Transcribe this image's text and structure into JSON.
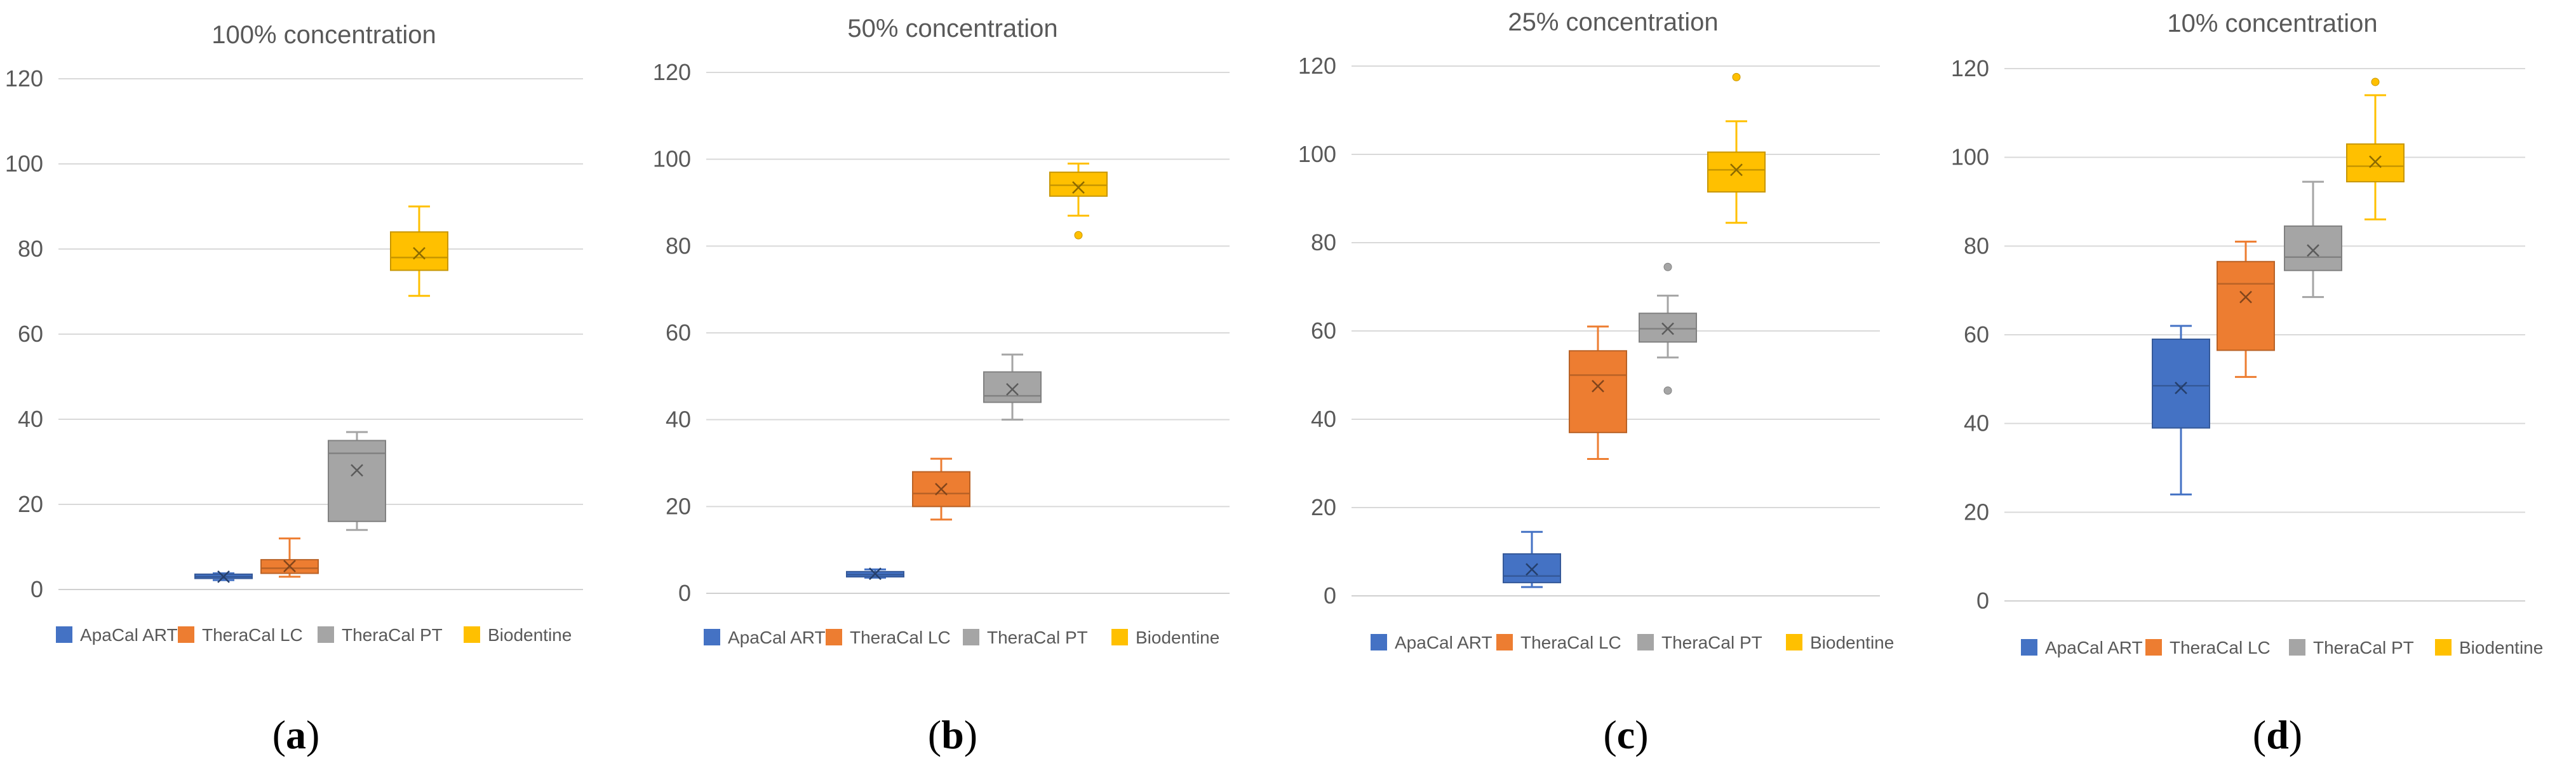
{
  "chart_data": [
    {
      "type": "box",
      "caption": "a",
      "title": "100% concentration",
      "ylim": [
        0,
        120
      ],
      "yticks": [
        0,
        20,
        40,
        60,
        80,
        100,
        120
      ],
      "series": [
        {
          "name": "ApaCal ART",
          "color": "#4472C4",
          "min": 2.2,
          "q1": 2.6,
          "median": 3.0,
          "q3": 3.6,
          "max": 3.8,
          "mean": 3.0,
          "outliers": []
        },
        {
          "name": "TheraCal LC",
          "color": "#ED7D31",
          "min": 3.0,
          "q1": 3.8,
          "median": 5.0,
          "q3": 7.0,
          "max": 12.0,
          "mean": 5.5,
          "outliers": []
        },
        {
          "name": "TheraCal PT",
          "color": "#A5A5A5",
          "min": 14.0,
          "q1": 16.0,
          "median": 32.0,
          "q3": 35.0,
          "max": 37.0,
          "mean": 28.0,
          "outliers": []
        },
        {
          "name": "Biodentine",
          "color": "#FFC000",
          "min": 69.0,
          "q1": 75.0,
          "median": 78.0,
          "q3": 84.0,
          "max": 90.0,
          "mean": 79.0,
          "outliers": []
        }
      ]
    },
    {
      "type": "box",
      "caption": "b",
      "title": "50% concentration",
      "ylim": [
        0,
        120
      ],
      "yticks": [
        0,
        20,
        40,
        60,
        80,
        100,
        120
      ],
      "series": [
        {
          "name": "ApaCal ART",
          "color": "#4472C4",
          "min": 3.6,
          "q1": 3.8,
          "median": 4.3,
          "q3": 5.0,
          "max": 5.5,
          "mean": 4.5,
          "outliers": []
        },
        {
          "name": "TheraCal LC",
          "color": "#ED7D31",
          "min": 17.0,
          "q1": 20.0,
          "median": 23.0,
          "q3": 28.0,
          "max": 31.0,
          "mean": 24.0,
          "outliers": []
        },
        {
          "name": "TheraCal PT",
          "color": "#A5A5A5",
          "min": 40.0,
          "q1": 44.0,
          "median": 45.5,
          "q3": 51.0,
          "max": 55.0,
          "mean": 47.0,
          "outliers": []
        },
        {
          "name": "Biodentine",
          "color": "#FFC000",
          "min": 87.0,
          "q1": 91.5,
          "median": 94.0,
          "q3": 97.0,
          "max": 99.0,
          "mean": 93.5,
          "outliers": [
            82.5
          ]
        }
      ]
    },
    {
      "type": "box",
      "caption": "c",
      "title": "25% concentration",
      "ylim": [
        0,
        120
      ],
      "yticks": [
        0,
        20,
        40,
        60,
        80,
        100,
        120
      ],
      "series": [
        {
          "name": "ApaCal ART",
          "color": "#4472C4",
          "min": 2.0,
          "q1": 3.0,
          "median": 4.5,
          "q3": 9.5,
          "max": 14.5,
          "mean": 6.0,
          "outliers": []
        },
        {
          "name": "TheraCal LC",
          "color": "#ED7D31",
          "min": 31.0,
          "q1": 37.0,
          "median": 50.0,
          "q3": 55.5,
          "max": 61.0,
          "mean": 47.5,
          "outliers": []
        },
        {
          "name": "TheraCal PT",
          "color": "#A5A5A5",
          "min": 54.0,
          "q1": 57.5,
          "median": 60.5,
          "q3": 64.0,
          "max": 68.0,
          "mean": 60.5,
          "outliers": [
            74.5,
            46.5
          ]
        },
        {
          "name": "Biodentine",
          "color": "#FFC000",
          "min": 84.5,
          "q1": 91.5,
          "median": 96.5,
          "q3": 100.5,
          "max": 107.5,
          "mean": 96.5,
          "outliers": [
            117.5
          ]
        }
      ]
    },
    {
      "type": "box",
      "caption": "d",
      "title": "10% concentration",
      "ylim": [
        0,
        120
      ],
      "yticks": [
        0,
        20,
        40,
        60,
        80,
        100,
        120
      ],
      "series": [
        {
          "name": "ApaCal ART",
          "color": "#4472C4",
          "min": 24.0,
          "q1": 39.0,
          "median": 48.5,
          "q3": 59.0,
          "max": 62.0,
          "mean": 48.0,
          "outliers": []
        },
        {
          "name": "TheraCal LC",
          "color": "#ED7D31",
          "min": 50.5,
          "q1": 56.5,
          "median": 71.5,
          "q3": 76.5,
          "max": 81.0,
          "mean": 68.5,
          "outliers": []
        },
        {
          "name": "TheraCal PT",
          "color": "#A5A5A5",
          "min": 68.5,
          "q1": 74.5,
          "median": 77.5,
          "q3": 84.5,
          "max": 94.5,
          "mean": 79.0,
          "outliers": []
        },
        {
          "name": "Biodentine",
          "color": "#FFC000",
          "min": 86.0,
          "q1": 94.5,
          "median": 98.0,
          "q3": 103.0,
          "max": 114.0,
          "mean": 99.0,
          "outliers": [
            117.0
          ]
        }
      ]
    }
  ]
}
